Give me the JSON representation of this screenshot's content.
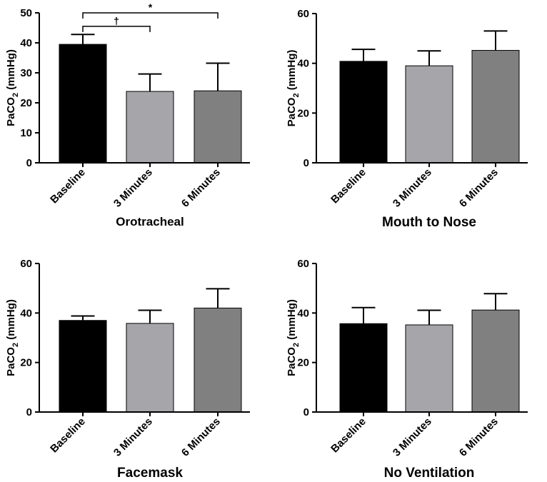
{
  "chart_data": [
    {
      "type": "bar",
      "title": "Orotracheal",
      "ylabel": "PaCO2 (mmHg)",
      "ylabel_main": "PaCO",
      "ylabel_sub": "2",
      "ylabel_rest": " (mmHg)",
      "categories": [
        "Baseline",
        "3 Minutes",
        "6 Minutes"
      ],
      "values": [
        39.5,
        23.8,
        24.0
      ],
      "errors": [
        3.3,
        5.8,
        9.2
      ],
      "colors": [
        "#000000",
        "#a6a6aa",
        "#808080"
      ],
      "ylim": [
        0,
        50
      ],
      "yticks": [
        0,
        10,
        20,
        30,
        40,
        50
      ],
      "significance": [
        {
          "from": 0,
          "to": 1,
          "label": "†",
          "y": 45.5
        },
        {
          "from": 0,
          "to": 2,
          "label": "*",
          "y": 50
        }
      ]
    },
    {
      "type": "bar",
      "title": "Mouth to Nose",
      "ylabel": "PaCO2 (mmHg)",
      "ylabel_main": "PaCO",
      "ylabel_sub": "2",
      "ylabel_rest": " (mmHg)",
      "categories": [
        "Baseline",
        "3 Minutes",
        "6 Minutes"
      ],
      "values": [
        40.8,
        39.0,
        45.2
      ],
      "errors": [
        4.8,
        6.0,
        7.8
      ],
      "colors": [
        "#000000",
        "#a6a6aa",
        "#808080"
      ],
      "ylim": [
        0,
        60
      ],
      "yticks": [
        0,
        20,
        40,
        60
      ],
      "significance": []
    },
    {
      "type": "bar",
      "title": "Facemask",
      "ylabel": "PaCO2 (mmHg)",
      "ylabel_main": "PaCO",
      "ylabel_sub": "2",
      "ylabel_rest": " (mmHg)",
      "categories": [
        "Baseline",
        "3 Minutes",
        "6 Minutes"
      ],
      "values": [
        37.0,
        35.8,
        42.0
      ],
      "errors": [
        1.8,
        5.3,
        7.8
      ],
      "colors": [
        "#000000",
        "#a6a6aa",
        "#808080"
      ],
      "ylim": [
        0,
        60
      ],
      "yticks": [
        0,
        20,
        40,
        60
      ],
      "significance": []
    },
    {
      "type": "bar",
      "title": "No Ventilation",
      "ylabel": "PaCO2 (mmHg)",
      "ylabel_main": "PaCO",
      "ylabel_sub": "2",
      "ylabel_rest": " (mmHg)",
      "categories": [
        "Baseline",
        "3 Minutes",
        "6 Minutes"
      ],
      "values": [
        35.7,
        35.2,
        41.2
      ],
      "errors": [
        6.5,
        5.9,
        6.6
      ],
      "colors": [
        "#000000",
        "#a6a6aa",
        "#808080"
      ],
      "ylim": [
        0,
        60
      ],
      "yticks": [
        0,
        20,
        40,
        60
      ],
      "significance": []
    }
  ]
}
